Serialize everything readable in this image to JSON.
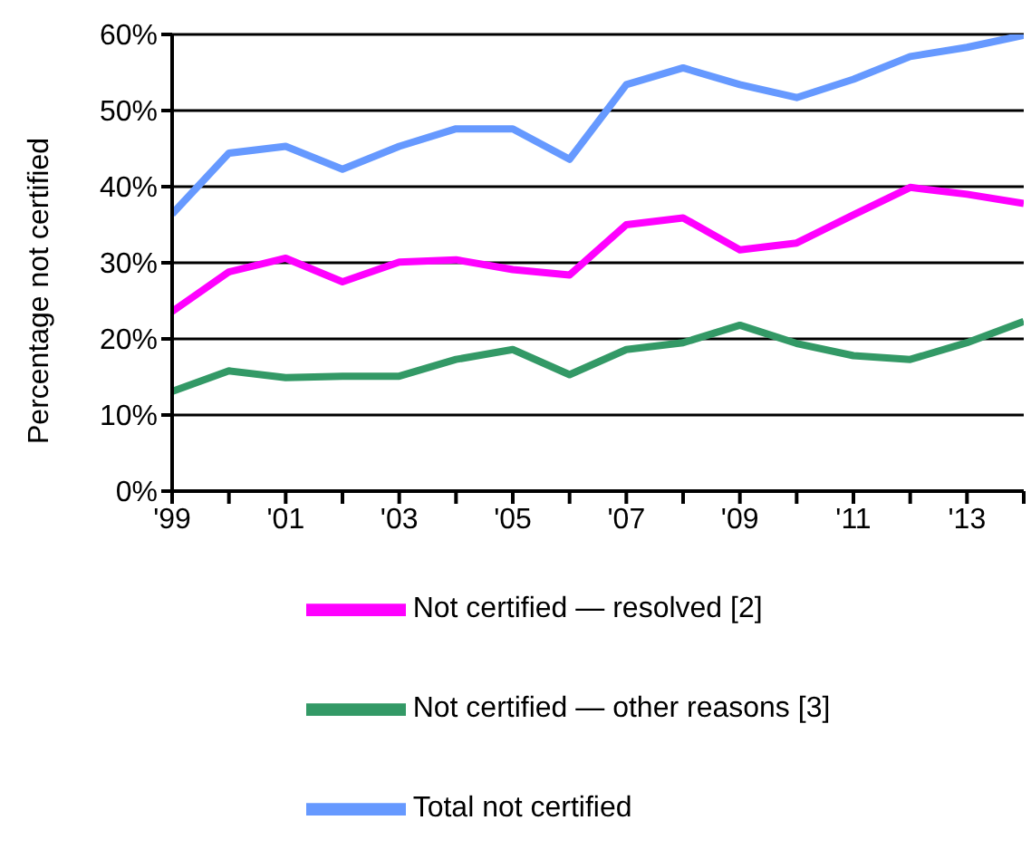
{
  "chart_data": {
    "type": "line",
    "ylabel": "Percentage  not certified",
    "x": [
      1999,
      2000,
      2001,
      2002,
      2003,
      2004,
      2005,
      2006,
      2007,
      2008,
      2009,
      2010,
      2011,
      2012,
      2013,
      2014
    ],
    "series": [
      {
        "name": "Not certified — resolved [2]",
        "color": "#ff00ff",
        "values": [
          23.6,
          28.8,
          30.6,
          27.5,
          30.1,
          30.4,
          29.1,
          28.4,
          35.0,
          35.9,
          31.7,
          32.6,
          36.3,
          39.9,
          39.0,
          37.8
        ]
      },
      {
        "name": "Not certified — other reasons [3]",
        "color": "#339966",
        "values": [
          13.1,
          15.8,
          14.9,
          15.1,
          15.1,
          17.3,
          18.6,
          15.3,
          18.6,
          19.5,
          21.8,
          19.4,
          17.8,
          17.3,
          19.5,
          22.3
        ]
      },
      {
        "name": "Total not certified",
        "color": "#6699ff",
        "values": [
          36.4,
          44.4,
          45.3,
          42.3,
          45.3,
          47.6,
          47.6,
          43.6,
          53.4,
          55.6,
          53.4,
          51.7,
          54.1,
          57.1,
          58.3,
          59.9
        ]
      }
    ],
    "xlim": [
      1999,
      2014
    ],
    "xticks": [
      {
        "value": 1999,
        "label": "'99"
      },
      {
        "value": 2000,
        "label": null
      },
      {
        "value": 2001,
        "label": "'01"
      },
      {
        "value": 2002,
        "label": null
      },
      {
        "value": 2003,
        "label": "'03"
      },
      {
        "value": 2004,
        "label": null
      },
      {
        "value": 2005,
        "label": "'05"
      },
      {
        "value": 2006,
        "label": null
      },
      {
        "value": 2007,
        "label": "'07"
      },
      {
        "value": 2008,
        "label": null
      },
      {
        "value": 2009,
        "label": "'09"
      },
      {
        "value": 2010,
        "label": null
      },
      {
        "value": 2011,
        "label": "'11"
      },
      {
        "value": 2012,
        "label": null
      },
      {
        "value": 2013,
        "label": "'13"
      },
      {
        "value": 2014,
        "label": null
      }
    ],
    "ylim": [
      0,
      60
    ],
    "yticks": [
      {
        "value": 0,
        "label": "0%"
      },
      {
        "value": 10,
        "label": "10%"
      },
      {
        "value": 20,
        "label": "20%"
      },
      {
        "value": 30,
        "label": "30%"
      },
      {
        "value": 40,
        "label": "40%"
      },
      {
        "value": 50,
        "label": "50%"
      },
      {
        "value": 60,
        "label": "60%"
      }
    ],
    "grid": "y",
    "legend": "bottom",
    "marker": "none",
    "line_style": "solid"
  }
}
